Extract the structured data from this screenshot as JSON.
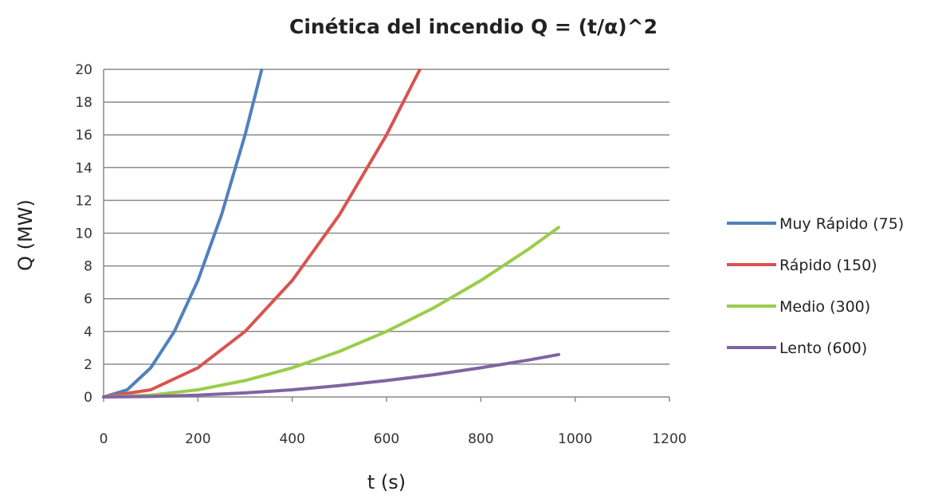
{
  "chart_data": {
    "type": "line",
    "title": "Cinética del incendio Q = (t/α)^2",
    "xlabel": "t (s)",
    "ylabel": "Q (MW)",
    "xlim": [
      0,
      1200
    ],
    "ylim": [
      0,
      20
    ],
    "x_ticks": [
      0,
      200,
      400,
      600,
      800,
      1000,
      1200
    ],
    "y_ticks": [
      0,
      2,
      4,
      6,
      8,
      10,
      12,
      14,
      16,
      18,
      20
    ],
    "grid": "horizontal",
    "legend_position": "right",
    "series": [
      {
        "name": "Muy Rápido  (75)",
        "color": "#4f81bd",
        "x": [
          0,
          50,
          100,
          150,
          200,
          250,
          300,
          335
        ],
        "y": [
          0,
          0.44,
          1.78,
          4.0,
          7.11,
          11.11,
          16.0,
          19.95
        ]
      },
      {
        "name": "Rápido  (150)",
        "color": "#d9534f",
        "x": [
          0,
          100,
          200,
          300,
          400,
          500,
          600,
          670
        ],
        "y": [
          0,
          0.44,
          1.78,
          4.0,
          7.11,
          11.11,
          16.0,
          19.95
        ]
      },
      {
        "name": "Medio  (300)",
        "color": "#9acd4a",
        "x": [
          0,
          100,
          200,
          300,
          400,
          500,
          600,
          700,
          800,
          900,
          965
        ],
        "y": [
          0,
          0.11,
          0.44,
          1.0,
          1.78,
          2.78,
          4.0,
          5.44,
          7.11,
          9.0,
          10.35
        ]
      },
      {
        "name": "Lento  (600)",
        "color": "#8064a2",
        "x": [
          0,
          100,
          200,
          300,
          400,
          500,
          600,
          700,
          800,
          900,
          965
        ],
        "y": [
          0,
          0.03,
          0.11,
          0.25,
          0.44,
          0.69,
          1.0,
          1.36,
          1.78,
          2.25,
          2.59
        ]
      }
    ]
  }
}
